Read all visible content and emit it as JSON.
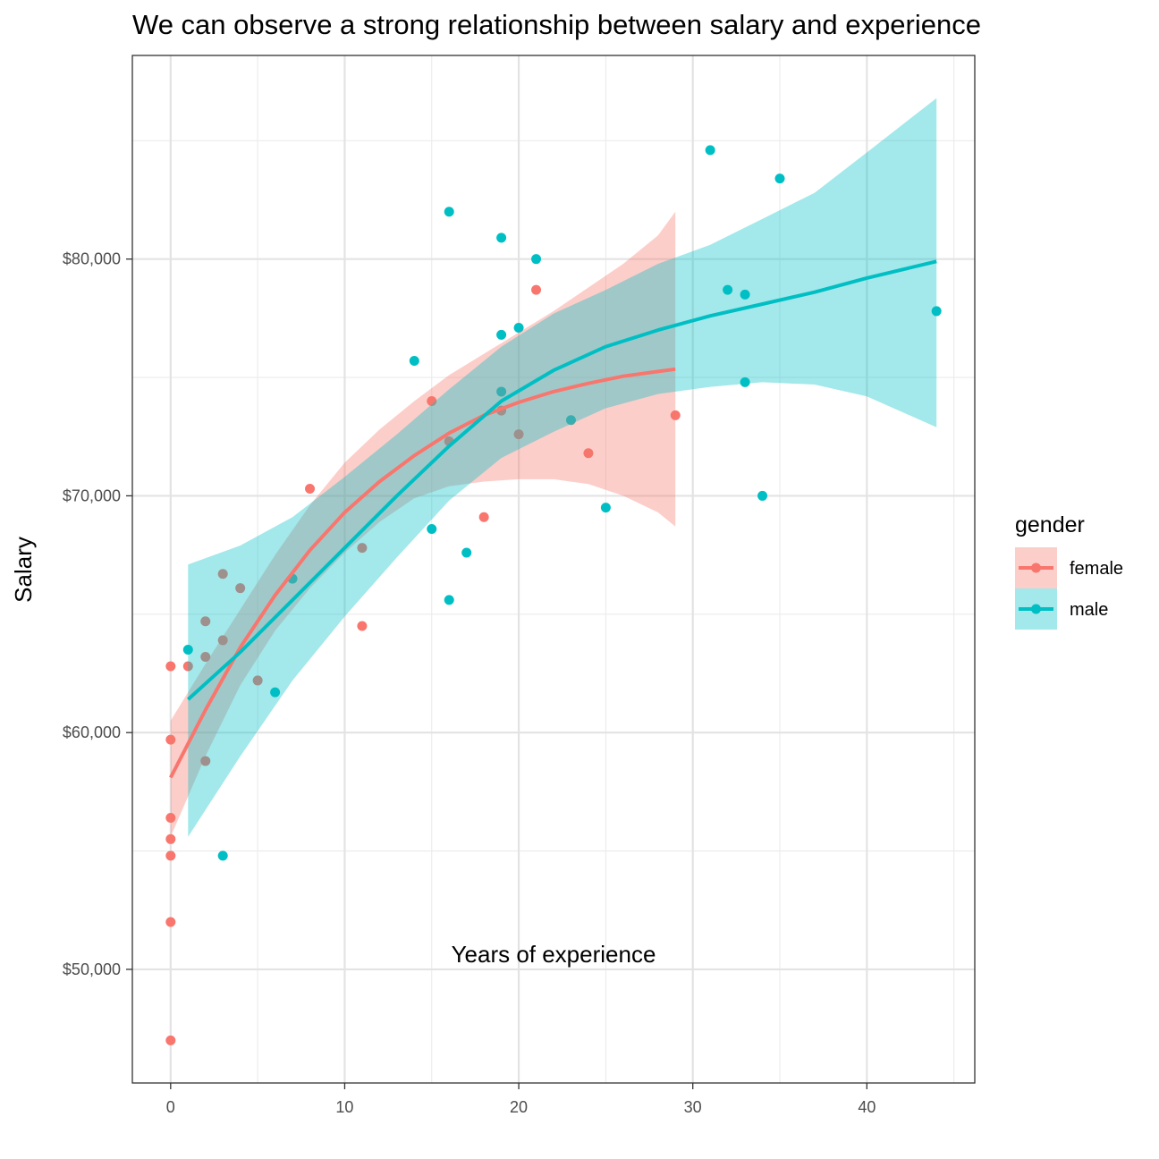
{
  "chart_data": {
    "type": "scatter",
    "title": "We can observe a strong relationship between salary and experience",
    "xlabel": "Years of experience",
    "ylabel": "Salary",
    "xlim": [
      -2.2,
      46.2
    ],
    "ylim": [
      45200,
      88600
    ],
    "x_ticks": [
      0,
      10,
      20,
      30,
      40
    ],
    "x_tick_labels": [
      "0",
      "10",
      "20",
      "30",
      "40"
    ],
    "x_minor_ticks": [
      5,
      15,
      25,
      35,
      45
    ],
    "y_ticks": [
      50000,
      60000,
      70000,
      80000
    ],
    "y_tick_labels": [
      "$50,000",
      "$60,000",
      "$70,000",
      "$80,000"
    ],
    "y_minor_ticks": [
      55000,
      65000,
      75000,
      85000
    ],
    "grid": true,
    "legend": {
      "title": "gender",
      "position": "right"
    },
    "series": [
      {
        "name": "female",
        "color": "#F8766D",
        "points": [
          [
            0,
            47000
          ],
          [
            0,
            52000
          ],
          [
            0,
            54800
          ],
          [
            0,
            55500
          ],
          [
            0,
            56400
          ],
          [
            0,
            59700
          ],
          [
            0,
            62800
          ],
          [
            1,
            62800
          ],
          [
            2,
            58800
          ],
          [
            2,
            63200
          ],
          [
            2,
            64700
          ],
          [
            3,
            63900
          ],
          [
            3,
            66700
          ],
          [
            4,
            66100
          ],
          [
            5,
            62200
          ],
          [
            8,
            70300
          ],
          [
            11,
            64500
          ],
          [
            11,
            67800
          ],
          [
            15,
            74000
          ],
          [
            16,
            72300
          ],
          [
            18,
            69100
          ],
          [
            19,
            73600
          ],
          [
            20,
            72600
          ],
          [
            21,
            78700
          ],
          [
            24,
            71800
          ],
          [
            29,
            73400
          ]
        ],
        "fit": [
          [
            0,
            58100
          ],
          [
            2,
            60950
          ],
          [
            4,
            63600
          ],
          [
            6,
            65800
          ],
          [
            8,
            67700
          ],
          [
            10,
            69300
          ],
          [
            12,
            70600
          ],
          [
            14,
            71700
          ],
          [
            16,
            72650
          ],
          [
            18,
            73400
          ],
          [
            20,
            73950
          ],
          [
            22,
            74400
          ],
          [
            24,
            74750
          ],
          [
            26,
            75050
          ],
          [
            28,
            75250
          ],
          [
            29,
            75350
          ]
        ],
        "band_upper": [
          [
            0,
            60500
          ],
          [
            2,
            62900
          ],
          [
            4,
            65200
          ],
          [
            6,
            67500
          ],
          [
            8,
            69600
          ],
          [
            10,
            71400
          ],
          [
            12,
            72800
          ],
          [
            14,
            74000
          ],
          [
            16,
            75100
          ],
          [
            18,
            76000
          ],
          [
            20,
            76900
          ],
          [
            22,
            77800
          ],
          [
            24,
            78800
          ],
          [
            26,
            79800
          ],
          [
            28,
            81000
          ],
          [
            29,
            82000
          ]
        ],
        "band_lower": [
          [
            0,
            55600
          ],
          [
            2,
            59000
          ],
          [
            4,
            62000
          ],
          [
            6,
            64300
          ],
          [
            8,
            66100
          ],
          [
            10,
            67600
          ],
          [
            12,
            68900
          ],
          [
            14,
            69900
          ],
          [
            16,
            70400
          ],
          [
            18,
            70600
          ],
          [
            20,
            70700
          ],
          [
            22,
            70700
          ],
          [
            24,
            70500
          ],
          [
            26,
            70000
          ],
          [
            28,
            69300
          ],
          [
            29,
            68700
          ]
        ]
      },
      {
        "name": "male",
        "color": "#00BFC4",
        "points": [
          [
            1,
            63500
          ],
          [
            3,
            54800
          ],
          [
            6,
            61700
          ],
          [
            7,
            66500
          ],
          [
            14,
            75700
          ],
          [
            15,
            68600
          ],
          [
            16,
            82000
          ],
          [
            16,
            65600
          ],
          [
            17,
            67600
          ],
          [
            19,
            80900
          ],
          [
            19,
            76800
          ],
          [
            19,
            74400
          ],
          [
            20,
            77100
          ],
          [
            21,
            80000
          ],
          [
            23,
            73200
          ],
          [
            25,
            69500
          ],
          [
            31,
            84600
          ],
          [
            32,
            78700
          ],
          [
            33,
            78500
          ],
          [
            33,
            74800
          ],
          [
            34,
            70000
          ],
          [
            35,
            83400
          ],
          [
            44,
            77800
          ]
        ],
        "fit": [
          [
            1,
            61400
          ],
          [
            4,
            63400
          ],
          [
            7,
            65600
          ],
          [
            10,
            67800
          ],
          [
            13,
            70000
          ],
          [
            16,
            72100
          ],
          [
            19,
            74000
          ],
          [
            22,
            75300
          ],
          [
            25,
            76300
          ],
          [
            28,
            77000
          ],
          [
            31,
            77600
          ],
          [
            34,
            78100
          ],
          [
            37,
            78600
          ],
          [
            40,
            79200
          ],
          [
            44,
            79900
          ]
        ],
        "band_upper": [
          [
            1,
            67100
          ],
          [
            4,
            67900
          ],
          [
            7,
            69100
          ],
          [
            10,
            70800
          ],
          [
            13,
            72600
          ],
          [
            16,
            74500
          ],
          [
            19,
            76300
          ],
          [
            22,
            77700
          ],
          [
            25,
            78700
          ],
          [
            28,
            79800
          ],
          [
            31,
            80600
          ],
          [
            34,
            81700
          ],
          [
            37,
            82800
          ],
          [
            40,
            84500
          ],
          [
            44,
            86800
          ]
        ],
        "band_lower": [
          [
            1,
            55600
          ],
          [
            4,
            59000
          ],
          [
            7,
            62200
          ],
          [
            10,
            64900
          ],
          [
            13,
            67400
          ],
          [
            16,
            69800
          ],
          [
            19,
            71600
          ],
          [
            22,
            72700
          ],
          [
            25,
            73700
          ],
          [
            28,
            74300
          ],
          [
            31,
            74600
          ],
          [
            34,
            74800
          ],
          [
            37,
            74700
          ],
          [
            40,
            74200
          ],
          [
            44,
            72900
          ]
        ]
      }
    ]
  }
}
